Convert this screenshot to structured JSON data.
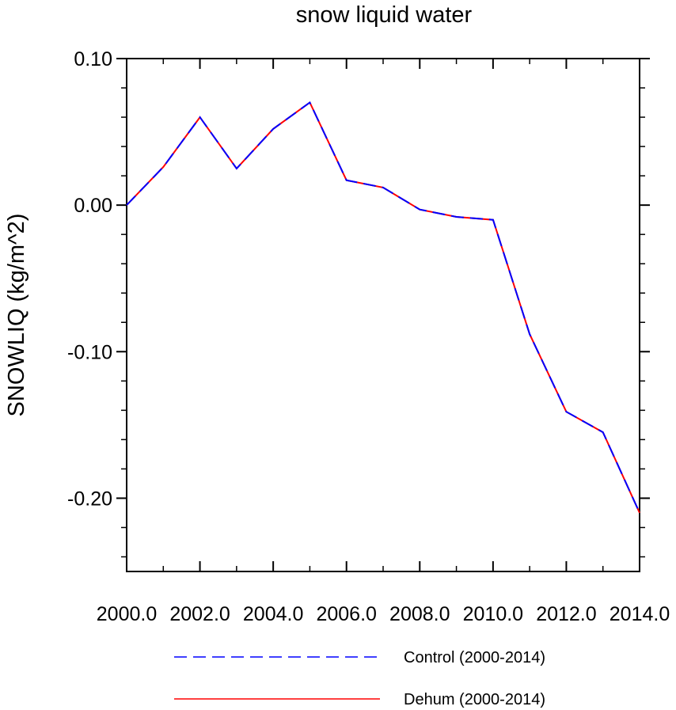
{
  "chart_data": {
    "type": "line",
    "title": "snow liquid water",
    "xlabel": "",
    "ylabel": "SNOWLIQ  (kg/m^2)",
    "xlim": [
      2000.0,
      2014.0
    ],
    "ylim": [
      -0.25,
      0.1
    ],
    "x_tick_labels": [
      "2000.0",
      "2002.0",
      "2004.0",
      "2006.0",
      "2008.0",
      "2010.0",
      "2012.0",
      "2014.0"
    ],
    "y_tick_labels": [
      "0.10",
      "0.00",
      "-0.10",
      "-0.20"
    ],
    "grid": false,
    "legend_position": "bottom",
    "x": [
      2000,
      2001,
      2002,
      2003,
      2004,
      2005,
      2006,
      2007,
      2008,
      2009,
      2010,
      2011,
      2012,
      2013,
      2014
    ],
    "series": [
      {
        "name": "Control (2000-2014)",
        "color": "#0000ff",
        "style": "dashed",
        "values": [
          0.0,
          0.026,
          0.06,
          0.025,
          0.052,
          0.07,
          0.017,
          0.012,
          -0.003,
          -0.008,
          -0.01,
          -0.088,
          -0.141,
          -0.155,
          -0.21
        ]
      },
      {
        "name": "Dehum (2000-2014)",
        "color": "#ff0000",
        "style": "solid",
        "values": [
          0.0,
          0.026,
          0.06,
          0.025,
          0.052,
          0.07,
          0.017,
          0.012,
          -0.003,
          -0.008,
          -0.01,
          -0.088,
          -0.141,
          -0.155,
          -0.21
        ]
      }
    ]
  }
}
